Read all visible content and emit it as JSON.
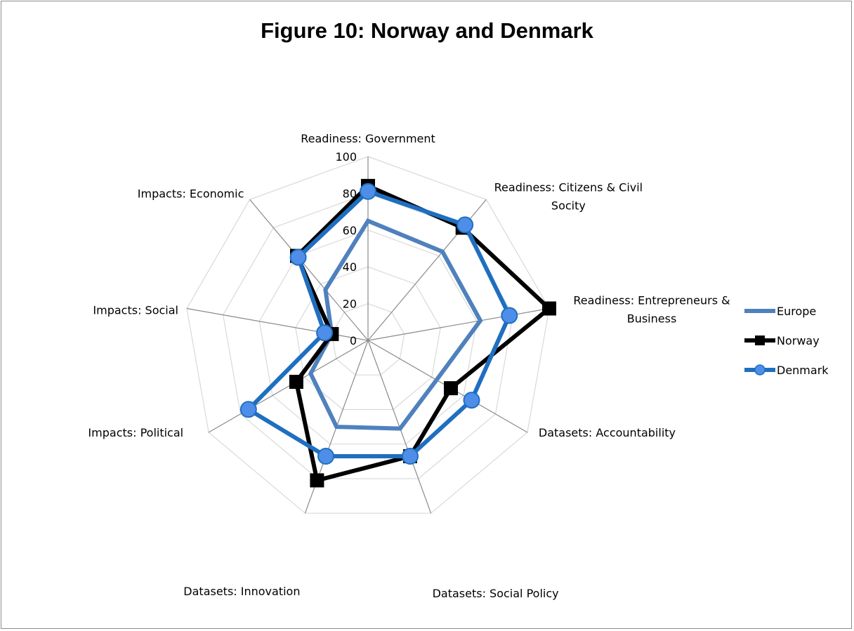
{
  "chart_data": {
    "type": "radar",
    "title": "Figure 10: Norway and Denmark",
    "categories": [
      [
        "Readiness: Government"
      ],
      [
        "Readiness: Citizens & Civil",
        "Socity"
      ],
      [
        "Readiness: Entrepreneurs &",
        "Business"
      ],
      [
        "Datasets: Accountability"
      ],
      [
        "Datasets: Social Policy"
      ],
      [
        "Datasets: Innovation"
      ],
      [
        "Impacts: Political"
      ],
      [
        "Impacts: Social"
      ],
      [
        "Impacts: Economic"
      ]
    ],
    "rlim": [
      0,
      100
    ],
    "ticks": [
      0,
      20,
      40,
      60,
      80,
      100
    ],
    "legend_position": "right",
    "series": [
      {
        "name": "Europe",
        "color": "#4f81bd",
        "marker": "none",
        "values": [
          65,
          63,
          62,
          43,
          51,
          50,
          36,
          20,
          36
        ]
      },
      {
        "name": "Norway",
        "color": "#000000",
        "marker": "square",
        "values": [
          84,
          80,
          100,
          52,
          67,
          81,
          45,
          20,
          60
        ]
      },
      {
        "name": "Denmark",
        "color": "#1f6fc0",
        "marker": "circle",
        "markerFill": "#4f8ee8",
        "values": [
          81,
          82,
          78,
          65,
          67,
          67,
          75,
          24,
          59
        ]
      }
    ]
  }
}
